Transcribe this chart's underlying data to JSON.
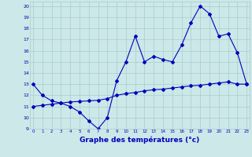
{
  "background_color": "#cce8e8",
  "grid_color": "#aacccc",
  "line_color": "#0000bb",
  "xlabel": "Graphe des températures (°c)",
  "hours": [
    0,
    1,
    2,
    3,
    4,
    5,
    6,
    7,
    8,
    9,
    10,
    11,
    12,
    13,
    14,
    15,
    16,
    17,
    18,
    19,
    20,
    21,
    22,
    23
  ],
  "temp_main": [
    13.0,
    12.0,
    11.5,
    11.3,
    11.0,
    10.5,
    9.7,
    9.0,
    10.0,
    13.3,
    15.0,
    17.3,
    15.0,
    15.5,
    15.2,
    15.0,
    16.5,
    18.5,
    20.0,
    19.3,
    17.3,
    17.5,
    15.8,
    13.0
  ],
  "temp_avg": [
    11.0,
    11.1,
    11.2,
    11.3,
    11.4,
    11.45,
    11.5,
    11.55,
    11.7,
    12.0,
    12.15,
    12.25,
    12.4,
    12.5,
    12.55,
    12.65,
    12.75,
    12.85,
    12.9,
    13.0,
    13.1,
    13.2,
    13.0,
    13.0
  ],
  "ylim": [
    9,
    20.4
  ],
  "xlim_min": -0.3,
  "xlim_max": 23.3,
  "yticks": [
    9,
    10,
    11,
    12,
    13,
    14,
    15,
    16,
    17,
    18,
    19,
    20
  ],
  "xticks": [
    0,
    1,
    2,
    3,
    4,
    5,
    6,
    7,
    8,
    9,
    10,
    11,
    12,
    13,
    14,
    15,
    16,
    17,
    18,
    19,
    20,
    21,
    22,
    23
  ]
}
